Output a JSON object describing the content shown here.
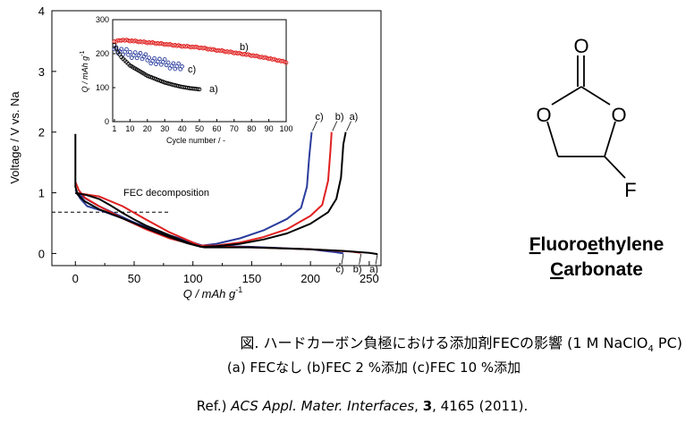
{
  "chart_data": [
    {
      "type": "line",
      "xlabel": "Q / mAh g",
      "xlabel_sup": "-1",
      "ylabel": "Voltage / V vs. Na",
      "xlim": [
        -20,
        260
      ],
      "ylim": [
        -0.2,
        4
      ],
      "x_ticks": [
        "0",
        "50",
        "100",
        "150",
        "200",
        "250"
      ],
      "y_ticks": [
        "0",
        "1",
        "2",
        "3",
        "4"
      ],
      "annotation": "FEC decomposition",
      "annotation_voltage": 0.68,
      "colors": {
        "a": "#000000",
        "b": "#e02020",
        "c": "#2a3c9c"
      },
      "series": [
        {
          "name": "a)",
          "charge": [
            [
              0,
              1.0
            ],
            [
              10,
              0.96
            ],
            [
              20,
              0.9
            ],
            [
              30,
              0.79
            ],
            [
              40,
              0.67
            ],
            [
              50,
              0.56
            ],
            [
              60,
              0.46
            ],
            [
              70,
              0.38
            ],
            [
              80,
              0.3
            ],
            [
              90,
              0.22
            ],
            [
              100,
              0.15
            ],
            [
              107,
              0.11
            ],
            [
              120,
              0.12
            ],
            [
              140,
              0.16
            ],
            [
              160,
              0.23
            ],
            [
              180,
              0.33
            ],
            [
              200,
              0.49
            ],
            [
              215,
              0.68
            ],
            [
              222,
              0.9
            ],
            [
              226,
              1.25
            ],
            [
              228,
              1.8
            ],
            [
              230,
              2.0
            ]
          ],
          "discharge": [
            [
              0,
              1.97
            ],
            [
              0,
              1.1
            ],
            [
              2,
              0.97
            ],
            [
              8,
              0.86
            ],
            [
              20,
              0.73
            ],
            [
              35,
              0.62
            ],
            [
              50,
              0.5
            ],
            [
              65,
              0.38
            ],
            [
              80,
              0.27
            ],
            [
              95,
              0.17
            ],
            [
              107,
              0.11
            ],
            [
              110,
              0.1
            ],
            [
              150,
              0.1
            ],
            [
              200,
              0.07
            ],
            [
              230,
              0.04
            ],
            [
              250,
              0.01
            ],
            [
              257,
              -0.01
            ]
          ],
          "bottom_label": "a)",
          "top_label": "a)"
        },
        {
          "name": "b)",
          "charge": [
            [
              0,
              1.0
            ],
            [
              20,
              0.94
            ],
            [
              40,
              0.78
            ],
            [
              60,
              0.56
            ],
            [
              80,
              0.35
            ],
            [
              100,
              0.18
            ],
            [
              106,
              0.13
            ],
            [
              120,
              0.13
            ],
            [
              140,
              0.18
            ],
            [
              160,
              0.27
            ],
            [
              180,
              0.4
            ],
            [
              200,
              0.62
            ],
            [
              210,
              0.8
            ],
            [
              215,
              1.2
            ],
            [
              217,
              1.7
            ],
            [
              218,
              2.0
            ]
          ],
          "discharge": [
            [
              0,
              1.18
            ],
            [
              3,
              1.04
            ],
            [
              8,
              0.92
            ],
            [
              20,
              0.78
            ],
            [
              40,
              0.58
            ],
            [
              60,
              0.4
            ],
            [
              80,
              0.25
            ],
            [
              100,
              0.15
            ],
            [
              107,
              0.12
            ],
            [
              150,
              0.1
            ],
            [
              200,
              0.07
            ],
            [
              235,
              0.03
            ],
            [
              243,
              0.01
            ]
          ],
          "bottom_label": "b)",
          "top_label": "b)"
        },
        {
          "name": "c)",
          "charge": [
            [
              0,
              1.0
            ],
            [
              20,
              0.78
            ],
            [
              40,
              0.6
            ],
            [
              60,
              0.42
            ],
            [
              80,
              0.27
            ],
            [
              100,
              0.16
            ],
            [
              108,
              0.13
            ],
            [
              120,
              0.16
            ],
            [
              140,
              0.25
            ],
            [
              160,
              0.38
            ],
            [
              180,
              0.57
            ],
            [
              192,
              0.75
            ],
            [
              197,
              1.1
            ],
            [
              199,
              1.6
            ],
            [
              201,
              2.0
            ]
          ],
          "discharge": [
            [
              0,
              1.05
            ],
            [
              4,
              0.91
            ],
            [
              10,
              0.78
            ],
            [
              20,
              0.72
            ],
            [
              40,
              0.58
            ],
            [
              60,
              0.44
            ],
            [
              80,
              0.3
            ],
            [
              100,
              0.18
            ],
            [
              108,
              0.13
            ],
            [
              150,
              0.11
            ],
            [
              200,
              0.07
            ],
            [
              222,
              0.02
            ],
            [
              228,
              0.0
            ]
          ],
          "bottom_label": "c)",
          "top_label": "c)"
        }
      ]
    },
    {
      "type": "scatter",
      "xlabel": "Cycle number / -",
      "ylabel": "Q / mAh g",
      "ylabel_sup": "-1",
      "xlim": [
        0,
        100
      ],
      "ylim": [
        0,
        300
      ],
      "x_ticks": [
        "1",
        "10",
        "20",
        "30",
        "40",
        "50",
        "60",
        "70",
        "80",
        "90",
        "100"
      ],
      "y_ticks": [
        "0",
        "100",
        "200",
        "300"
      ],
      "series": [
        {
          "name": "a)",
          "color": "#000000",
          "x_start": 1,
          "x_end": 50,
          "points": [
            [
              1,
              225
            ],
            [
              3,
              205
            ],
            [
              5,
              190
            ],
            [
              8,
              175
            ],
            [
              10,
              165
            ],
            [
              15,
              150
            ],
            [
              20,
              135
            ],
            [
              25,
              125
            ],
            [
              30,
              115
            ],
            [
              35,
              108
            ],
            [
              40,
              102
            ],
            [
              45,
              98
            ],
            [
              50,
              95
            ]
          ]
        },
        {
          "name": "b)",
          "color": "#e02020",
          "x_start": 1,
          "x_end": 100,
          "points": [
            [
              1,
              235
            ],
            [
              5,
              240
            ],
            [
              10,
              238
            ],
            [
              20,
              233
            ],
            [
              30,
              228
            ],
            [
              40,
              222
            ],
            [
              50,
              218
            ],
            [
              60,
              210
            ],
            [
              70,
              203
            ],
            [
              80,
              195
            ],
            [
              90,
              186
            ],
            [
              100,
              175
            ]
          ]
        },
        {
          "name": "c)",
          "color": "#2a3c9c",
          "x_start": 1,
          "x_end": 40,
          "points": [
            [
              1,
              215
            ],
            [
              5,
              205
            ],
            [
              10,
              200
            ],
            [
              15,
              195
            ],
            [
              20,
              185
            ],
            [
              25,
              178
            ],
            [
              30,
              172
            ],
            [
              35,
              165
            ],
            [
              40,
              160
            ]
          ]
        }
      ]
    }
  ],
  "molecule": {
    "atoms": {
      "carbonyl_O": "O",
      "ring_O_left": "O",
      "ring_O_right": "O",
      "fluorine": "F"
    },
    "name_line1": {
      "pre": "",
      "u1": "F",
      "mid": "luoro",
      "u2": "e",
      "post": "thylene"
    },
    "name_line2": {
      "u1": "C",
      "post": "arbonate"
    }
  },
  "caption": {
    "line1": "図.  ハードカーボン負極における添加剤FECの影響 (1 M NaClO",
    "line1_sub": "4",
    "line1_end": " PC)",
    "line2": "(a) FECなし (b)FEC 2 %添加 (c)FEC 10 %添加",
    "ref_prefix": "Ref.) ",
    "ref_journal": "ACS Appl. Mater. Interfaces",
    "ref_sep": ", ",
    "ref_volume": "3",
    "ref_rest": ", 4165 (2011)."
  }
}
